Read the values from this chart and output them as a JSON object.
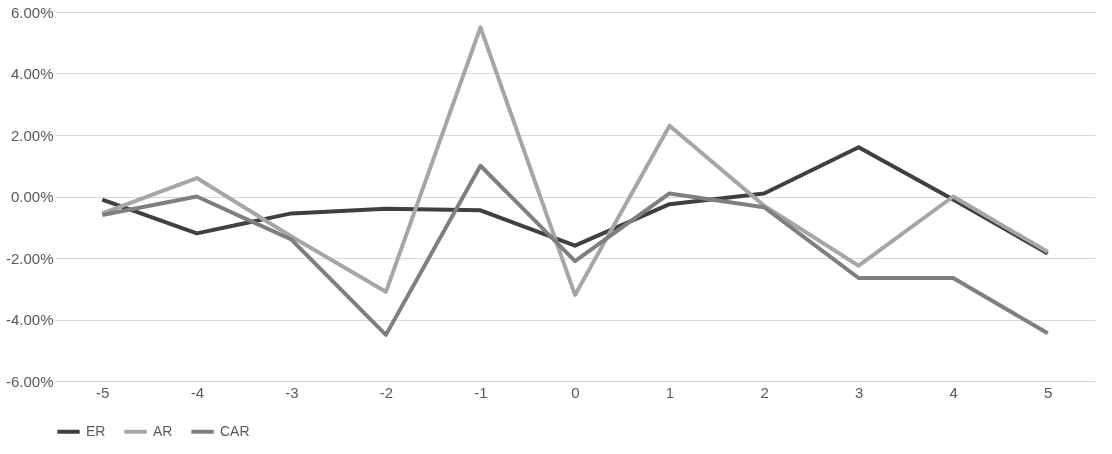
{
  "chart_data": {
    "type": "line",
    "categories": [
      "-5",
      "-4",
      "-3",
      "-2",
      "-1",
      "0",
      "1",
      "2",
      "3",
      "4",
      "5"
    ],
    "series": [
      {
        "name": "ER",
        "color": "#404040",
        "values": [
          -0.1,
          -1.2,
          -0.55,
          -0.4,
          -0.45,
          -1.6,
          -0.25,
          0.1,
          1.6,
          -0.1,
          -1.85
        ]
      },
      {
        "name": "AR",
        "color": "#a6a6a6",
        "values": [
          -0.55,
          0.6,
          -1.3,
          -3.1,
          5.5,
          -3.2,
          2.3,
          -0.3,
          -2.25,
          0.0,
          -1.8
        ]
      },
      {
        "name": "CAR",
        "color": "#7f7f7f",
        "values": [
          -0.6,
          0.0,
          -1.4,
          -4.5,
          1.0,
          -2.1,
          0.1,
          -0.35,
          -2.65,
          -2.65,
          -4.45
        ]
      }
    ],
    "ylim": [
      -6,
      6
    ],
    "yticks": [
      {
        "value": -6,
        "label": "-6.00%"
      },
      {
        "value": -4,
        "label": "-4.00%"
      },
      {
        "value": -2,
        "label": "-2.00%"
      },
      {
        "value": 0,
        "label": "0.00%"
      },
      {
        "value": 2,
        "label": "2.00%"
      },
      {
        "value": 4,
        "label": "4.00%"
      },
      {
        "value": 6,
        "label": "6.00%"
      }
    ],
    "grid": "y",
    "legend": "bottom",
    "marker": "none",
    "line_style": "solid"
  }
}
